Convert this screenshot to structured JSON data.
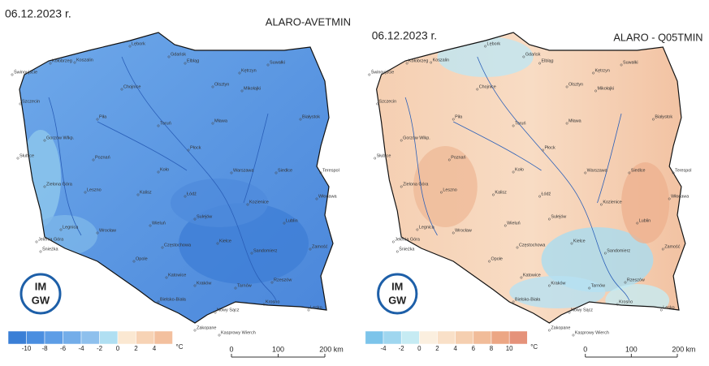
{
  "cities": [
    "Świnoujście",
    "Kołobrzeg",
    "Koszalin",
    "Lębork",
    "Gdańsk",
    "Elbląg",
    "Suwałki",
    "Kętrzyn",
    "Olsztyn",
    "Mikołajki",
    "Szczecin",
    "Chojnice",
    "Piła",
    "Toruń",
    "Mława",
    "Białystok",
    "Gorzów Wlkp.",
    "Płock",
    "Słubice",
    "Poznań",
    "Koło",
    "Warszawa",
    "Siedlce",
    "Terespol",
    "Zielona Góra",
    "Leszno",
    "Kalisz",
    "Łódź",
    "Kozienice",
    "Włodawa",
    "Sulejów",
    "Lublin",
    "Legnica",
    "Wrocław",
    "Wieluń",
    "Jelenia Góra",
    "Śnieżka",
    "Częstochowa",
    "Sandomierz",
    "Zamość",
    "Opole",
    "Kielce",
    "Katowice",
    "Kraków",
    "Tarnów",
    "Rzeszów",
    "Bielsko-Biała",
    "Nowy Sącz",
    "Krosno",
    "Lesko",
    "Zakopane",
    "Kasprowy Wierch"
  ],
  "panels": [
    {
      "date": "06.12.2023 r.",
      "title": "ALARO-AVETMIN",
      "legend_ticks": [
        -10,
        -8,
        -6,
        -4,
        -2,
        0,
        2,
        4
      ],
      "legend_colors": [
        "#3a7fd6",
        "#4a8ee0",
        "#5d9de6",
        "#73ade9",
        "#8ec0ed",
        "#b0dff2",
        "#fbe8d2",
        "#f7d3b5",
        "#f3c09e"
      ],
      "unit": "°C",
      "logo": [
        "IM",
        "GW"
      ],
      "scale": [
        "0",
        "100",
        "200 km"
      ]
    },
    {
      "date": "06.12.2023 r.",
      "title": "ALARO - Q05TMIN",
      "legend_ticks": [
        -4,
        -2,
        0,
        2,
        4,
        6,
        8,
        10
      ],
      "legend_colors": [
        "#7cc4ea",
        "#9fd6ef",
        "#c6ebf3",
        "#fbefdf",
        "#f9e0c8",
        "#f5cfb0",
        "#f1bc99",
        "#eca684",
        "#e5927a"
      ],
      "unit": "°C",
      "logo": [
        "IM",
        "GW"
      ],
      "scale": [
        "0",
        "100",
        "200 km"
      ]
    }
  ]
}
